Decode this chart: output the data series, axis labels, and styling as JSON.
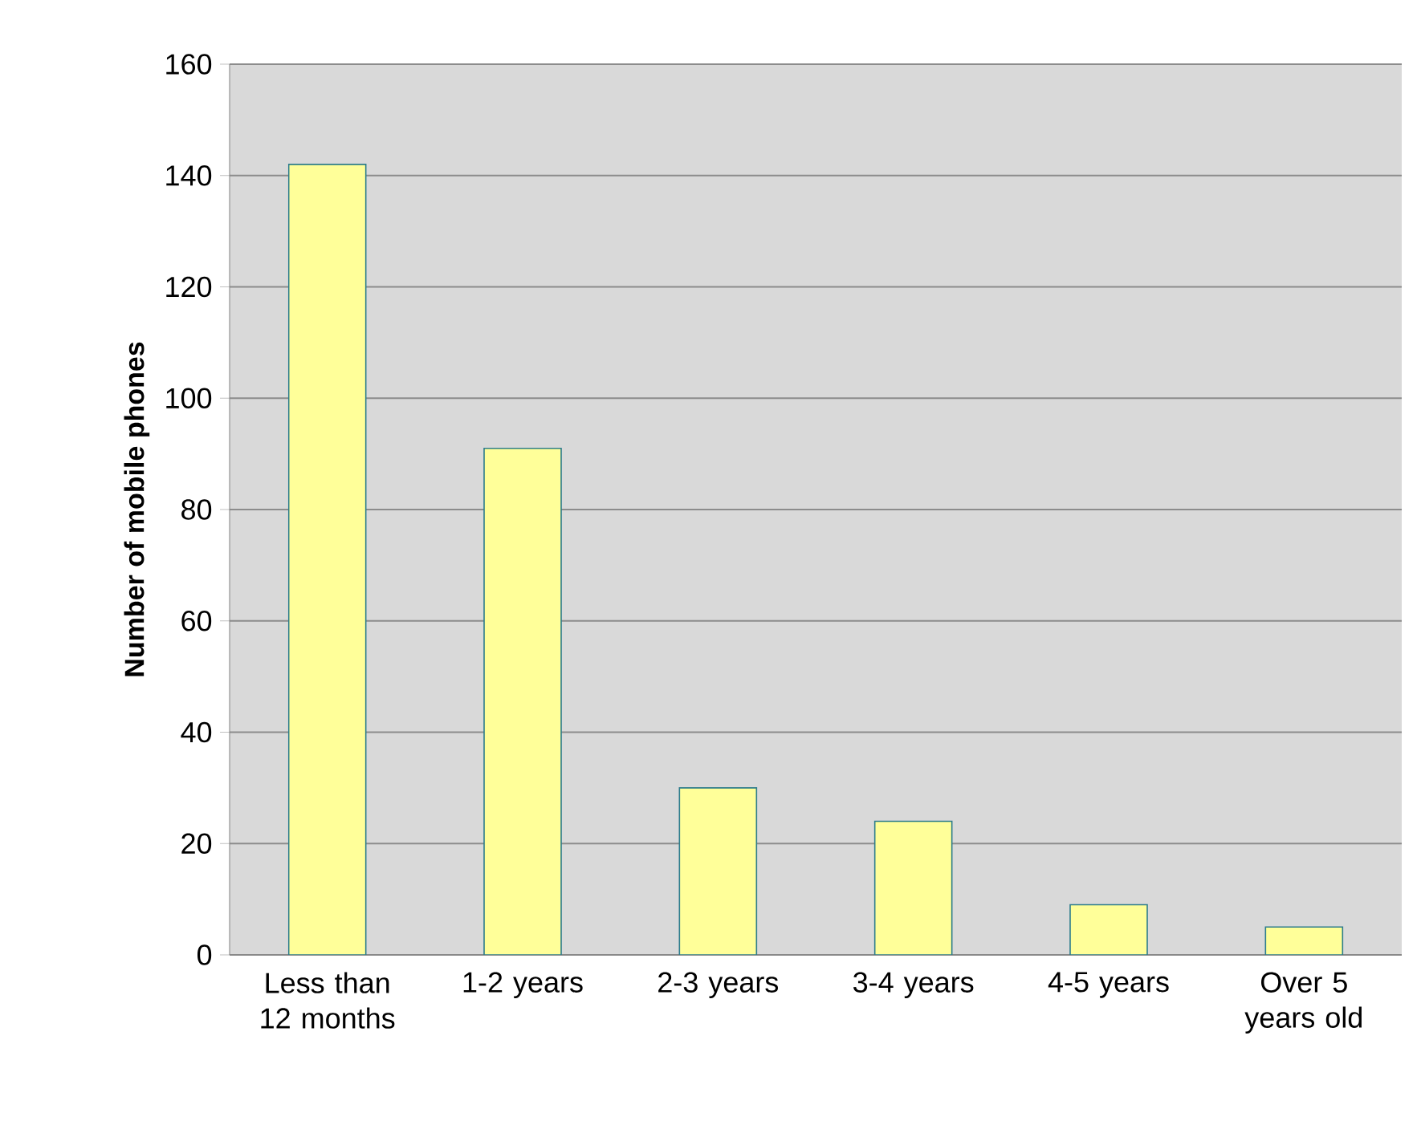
{
  "chart_data": {
    "type": "bar",
    "ylabel": "Number of mobile phones",
    "categories": [
      "Less than 12 months",
      "1-2 years",
      "2-3 years",
      "3-4 years",
      "4-5 years",
      "Over 5 years old"
    ],
    "values": [
      142,
      91,
      30,
      24,
      9,
      5
    ],
    "color": "#ffff99",
    "ylim": [
      0,
      160
    ],
    "yticks": [
      0,
      20,
      40,
      60,
      80,
      100,
      120,
      140,
      160
    ],
    "grid": "y"
  }
}
